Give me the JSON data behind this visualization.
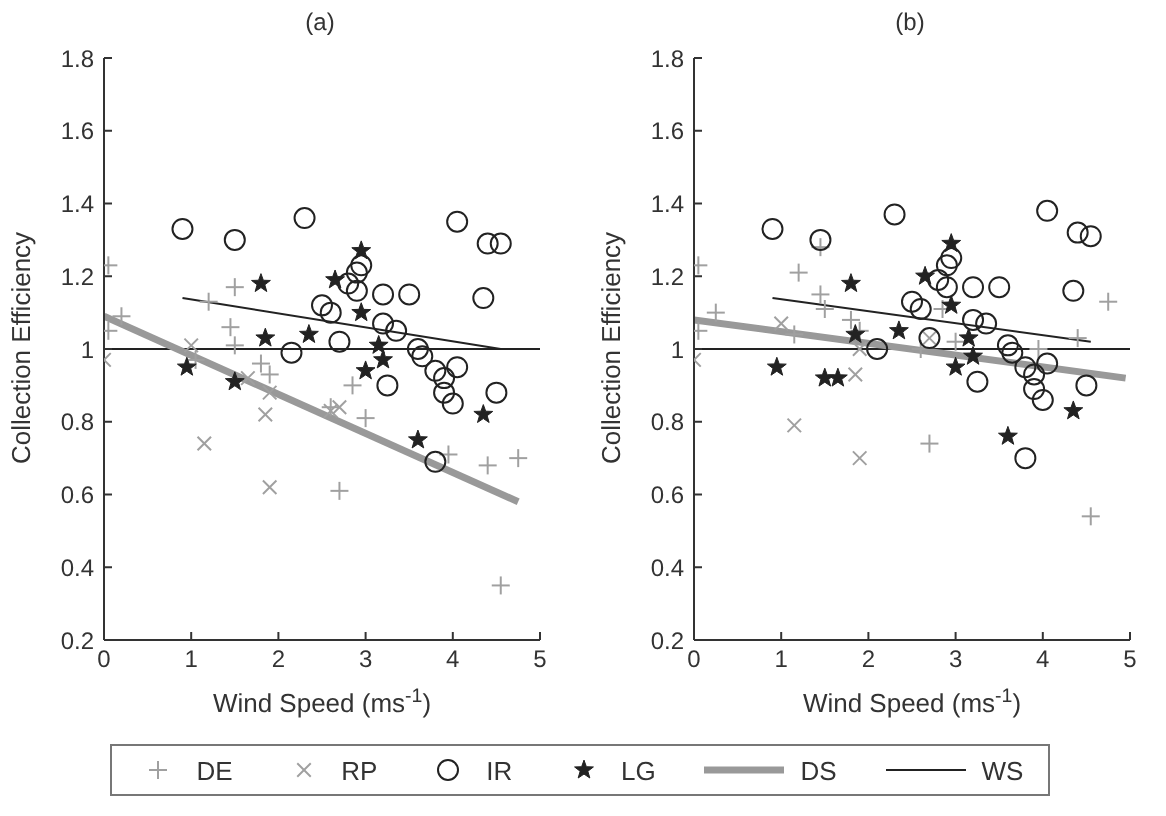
{
  "chart_data": [
    {
      "type": "scatter",
      "title": "(a)",
      "xlabel": "Wind Speed (ms$^{-1}$)",
      "ylabel": "Collection Efficiency",
      "xlim": [
        0,
        5
      ],
      "xticks": [
        0,
        1,
        2,
        3,
        4,
        5
      ],
      "ylim": [
        0.2,
        1.8
      ],
      "yticks": [
        0.2,
        0.4,
        0.6,
        0.8,
        1,
        1.2,
        1.4,
        1.6,
        1.8
      ],
      "legend": "bottom",
      "ref_lines": [
        {
          "axis": "y",
          "value": 1,
          "color": "#222222",
          "line_style": "solid"
        }
      ],
      "series": [
        {
          "name": "DE",
          "color": "#a0a0a0",
          "marker": "plus",
          "x": [
            0.05,
            0.05,
            0.2,
            1.2,
            1.5,
            1.45,
            1.5,
            1.8,
            1.9,
            2.85,
            3.0,
            2.7,
            3.95,
            4.4,
            4.75,
            4.55,
            2.6,
            1.05
          ],
          "values": [
            1.23,
            1.05,
            1.09,
            1.13,
            1.17,
            1.06,
            1.01,
            0.96,
            0.93,
            0.9,
            0.81,
            0.61,
            0.71,
            0.68,
            0.7,
            0.35,
            0.84,
            0.97
          ]
        },
        {
          "name": "RP",
          "color": "#a0a0a0",
          "marker": "cross",
          "x": [
            0.0,
            1.0,
            1.15,
            1.65,
            1.85,
            1.9,
            1.9,
            2.7,
            2.6
          ],
          "values": [
            0.97,
            1.01,
            0.74,
            0.92,
            0.82,
            0.62,
            0.88,
            0.84,
            0.83
          ]
        },
        {
          "name": "IR",
          "color": "#222222",
          "marker": "circle",
          "x": [
            0.9,
            1.5,
            2.3,
            2.15,
            2.5,
            2.6,
            2.7,
            2.8,
            2.9,
            2.9,
            2.95,
            3.2,
            3.2,
            3.35,
            3.25,
            3.5,
            3.6,
            3.65,
            3.8,
            3.9,
            3.9,
            4.0,
            4.05,
            4.05,
            4.4,
            4.55,
            4.35,
            4.5,
            3.8
          ],
          "values": [
            1.33,
            1.3,
            1.36,
            0.99,
            1.12,
            1.1,
            1.02,
            1.18,
            1.16,
            1.21,
            1.23,
            1.15,
            1.07,
            1.05,
            0.9,
            1.15,
            1.0,
            0.98,
            0.94,
            0.92,
            0.88,
            0.85,
            0.95,
            1.35,
            1.29,
            1.29,
            1.14,
            0.88,
            0.69
          ]
        },
        {
          "name": "LG",
          "color": "#222222",
          "marker": "star",
          "x": [
            0.95,
            1.5,
            1.8,
            1.85,
            2.35,
            2.65,
            2.95,
            2.95,
            3.15,
            3.0,
            3.2,
            3.6,
            4.35
          ],
          "values": [
            0.95,
            0.91,
            1.18,
            1.03,
            1.04,
            1.19,
            1.27,
            1.1,
            1.01,
            0.94,
            0.97,
            0.75,
            0.82
          ]
        },
        {
          "name": "DS",
          "type": "line",
          "color": "#999999",
          "marker": "none",
          "line_style": "solid",
          "x": [
            0,
            4.75
          ],
          "values": [
            1.09,
            0.58
          ]
        },
        {
          "name": "WS",
          "type": "line",
          "color": "#222222",
          "marker": "none",
          "line_style": "solid",
          "x": [
            0.9,
            4.55
          ],
          "values": [
            1.14,
            1.0
          ]
        }
      ]
    },
    {
      "type": "scatter",
      "title": "(b)",
      "xlabel": "Wind Speed (ms$^{-1}$)",
      "ylabel": "Collection Efficiency",
      "xlim": [
        0,
        5
      ],
      "xticks": [
        0,
        1,
        2,
        3,
        4,
        5
      ],
      "ylim": [
        0.2,
        1.8
      ],
      "yticks": [
        0.2,
        0.4,
        0.6,
        0.8,
        1,
        1.2,
        1.4,
        1.6,
        1.8
      ],
      "ref_lines": [
        {
          "axis": "y",
          "value": 1,
          "color": "#222222",
          "line_style": "solid"
        }
      ],
      "series": [
        {
          "color": "#a0a0a0",
          "marker": "plus",
          "x": [
            0.05,
            0.05,
            0.25,
            1.2,
            1.45,
            1.45,
            1.5,
            1.15,
            1.8,
            1.9,
            2.85,
            3.0,
            2.7,
            3.95,
            4.4,
            4.75,
            4.55,
            2.6
          ],
          "values": [
            1.23,
            1.05,
            1.1,
            1.21,
            1.28,
            1.15,
            1.11,
            1.04,
            1.08,
            1.05,
            1.11,
            1.02,
            0.74,
            1.0,
            1.03,
            1.13,
            0.54,
            1.0
          ]
        },
        {
          "color": "#a0a0a0",
          "marker": "cross",
          "x": [
            0.0,
            1.0,
            1.15,
            1.85,
            1.9,
            1.9,
            2.7
          ],
          "values": [
            0.97,
            1.07,
            0.79,
            0.93,
            0.7,
            1.0,
            1.03
          ]
        },
        {
          "color": "#222222",
          "marker": "circle",
          "x": [
            0.9,
            1.45,
            2.3,
            2.1,
            2.5,
            2.6,
            2.7,
            2.8,
            2.9,
            2.9,
            2.95,
            3.2,
            3.2,
            3.35,
            3.25,
            3.5,
            3.6,
            3.65,
            3.8,
            3.9,
            3.9,
            4.0,
            4.05,
            4.05,
            4.4,
            4.55,
            4.35,
            4.5,
            3.8
          ],
          "values": [
            1.33,
            1.3,
            1.37,
            1.0,
            1.13,
            1.11,
            1.03,
            1.19,
            1.17,
            1.23,
            1.25,
            1.17,
            1.08,
            1.07,
            0.91,
            1.17,
            1.01,
            0.99,
            0.95,
            0.93,
            0.89,
            0.86,
            0.96,
            1.38,
            1.32,
            1.31,
            1.16,
            0.9,
            0.7
          ]
        },
        {
          "color": "#222222",
          "marker": "star",
          "x": [
            0.95,
            1.5,
            1.65,
            1.8,
            1.85,
            2.35,
            2.65,
            2.95,
            2.95,
            3.15,
            3.0,
            3.2,
            3.6,
            4.35
          ],
          "values": [
            0.95,
            0.92,
            0.92,
            1.18,
            1.04,
            1.05,
            1.2,
            1.29,
            1.12,
            1.03,
            0.95,
            0.98,
            0.76,
            0.83
          ]
        },
        {
          "type": "line",
          "color": "#999999",
          "marker": "none",
          "line_style": "solid",
          "x": [
            0,
            4.95
          ],
          "values": [
            1.08,
            0.92
          ]
        },
        {
          "type": "line",
          "color": "#222222",
          "marker": "none",
          "line_style": "solid",
          "x": [
            0.9,
            4.55
          ],
          "values": [
            1.14,
            1.02
          ]
        }
      ]
    }
  ]
}
